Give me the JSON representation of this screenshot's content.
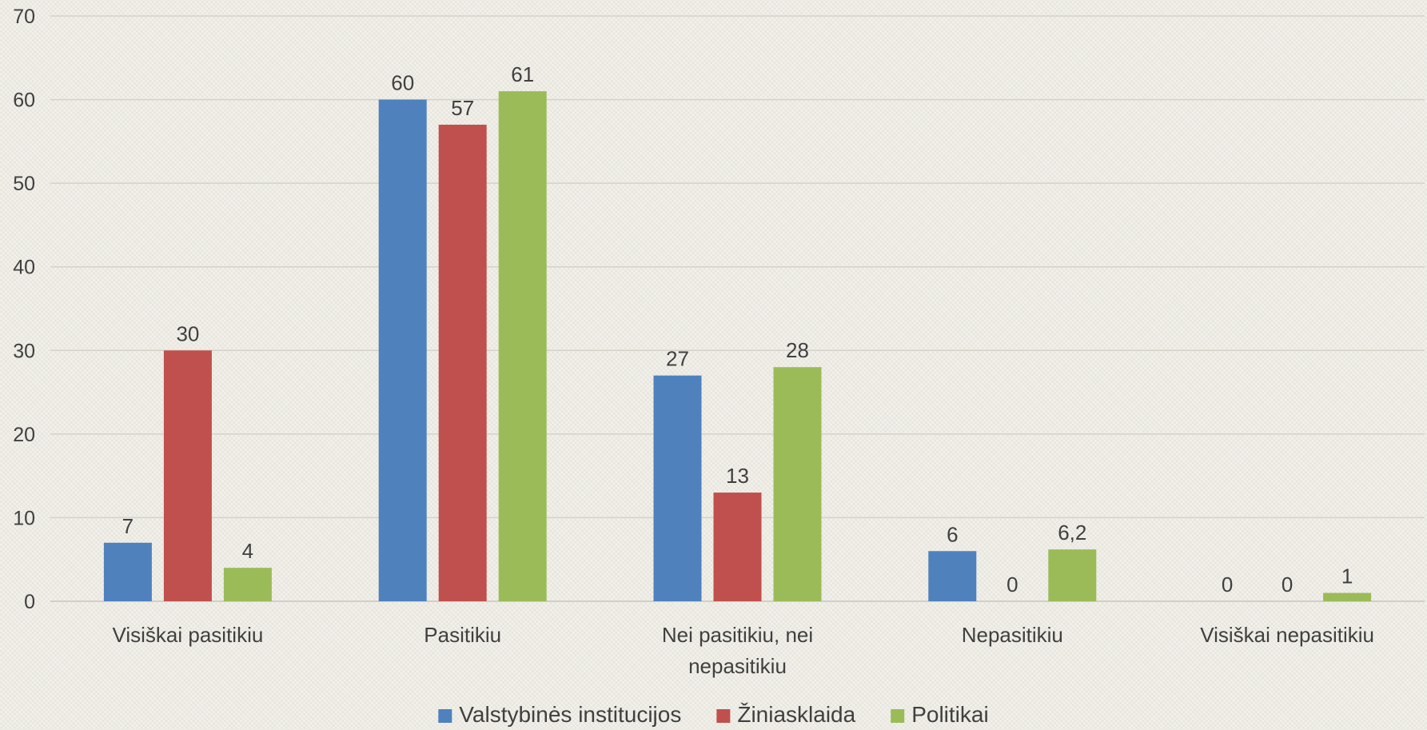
{
  "chart_data": {
    "type": "bar",
    "categories": [
      "Visiškai pasitikiu",
      "Pasitikiu",
      "Nei pasitikiu, nei nepasitikiu",
      "Nepasitikiu",
      "Visiškai nepasitikiu"
    ],
    "category_label_lines": [
      [
        "Visiškai pasitikiu"
      ],
      [
        "Pasitikiu"
      ],
      [
        "Nei pasitikiu, nei",
        "nepasitikiu"
      ],
      [
        "Nepasitikiu"
      ],
      [
        "Visiškai nepasitikiu"
      ]
    ],
    "series": [
      {
        "name": "Valstybinės institucijos",
        "color": "#4f81bd",
        "values": [
          7,
          60,
          27,
          6,
          0
        ],
        "labels": [
          "7",
          "60",
          "27",
          "6",
          "0"
        ]
      },
      {
        "name": "Žiniasklaida",
        "color": "#c0504d",
        "values": [
          30,
          57,
          13,
          0,
          0
        ],
        "labels": [
          "30",
          "57",
          "13",
          "0",
          "0"
        ]
      },
      {
        "name": "Politikai",
        "color": "#9bbb59",
        "values": [
          4,
          61,
          28,
          6.2,
          1
        ],
        "labels": [
          "4",
          "61",
          "28",
          "6,2",
          "1"
        ]
      }
    ],
    "ylim": [
      0,
      70
    ],
    "yticks": [
      0,
      10,
      20,
      30,
      40,
      50,
      60,
      70
    ],
    "grid": true,
    "legend": "bottom",
    "title": "",
    "xlabel": "",
    "ylabel": ""
  }
}
